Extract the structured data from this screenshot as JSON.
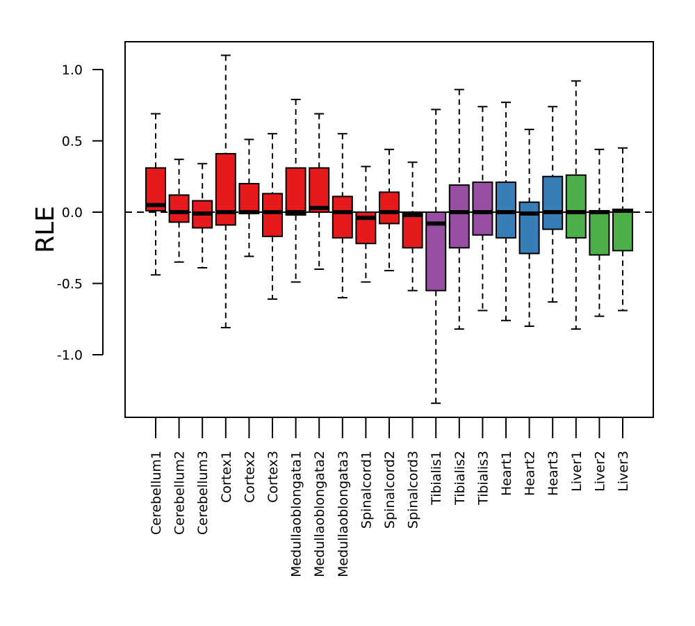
{
  "chart_data": {
    "type": "box",
    "ylabel": "RLE",
    "xlabel": "",
    "ylim": [
      -1.42,
      1.2
    ],
    "yticks": [
      1.0,
      0.5,
      0.0,
      -0.5,
      -1.0
    ],
    "ytick_labels": [
      "1.0",
      "0.5",
      "0.0",
      "-0.5",
      "-1.0"
    ],
    "reference_line": 0.0,
    "colors": {
      "red": "#e41a1c",
      "purple": "#984ea3",
      "blue": "#377eb8",
      "green": "#4daf4a"
    },
    "boxes": [
      {
        "label": "Cerebellum1",
        "color": "red",
        "min": -0.44,
        "q1": 0.01,
        "median": 0.05,
        "q3": 0.31,
        "max": 0.69
      },
      {
        "label": "Cerebellum2",
        "color": "red",
        "min": -0.35,
        "q1": -0.07,
        "median": 0.0,
        "q3": 0.12,
        "max": 0.37
      },
      {
        "label": "Cerebellum3",
        "color": "red",
        "min": -0.39,
        "q1": -0.11,
        "median": -0.01,
        "q3": 0.08,
        "max": 0.34
      },
      {
        "label": "Cortex1",
        "color": "red",
        "min": -0.81,
        "q1": -0.09,
        "median": 0.0,
        "q3": 0.41,
        "max": 1.1
      },
      {
        "label": "Cortex2",
        "color": "red",
        "min": -0.31,
        "q1": -0.01,
        "median": 0.0,
        "q3": 0.2,
        "max": 0.51
      },
      {
        "label": "Cortex3",
        "color": "red",
        "min": -0.61,
        "q1": -0.17,
        "median": 0.0,
        "q3": 0.13,
        "max": 0.55
      },
      {
        "label": "Medullaoblongata1",
        "color": "red",
        "min": -0.49,
        "q1": -0.02,
        "median": 0.0,
        "q3": 0.31,
        "max": 0.79
      },
      {
        "label": "Medullaoblongata2",
        "color": "red",
        "min": -0.4,
        "q1": 0.0,
        "median": 0.03,
        "q3": 0.31,
        "max": 0.69
      },
      {
        "label": "Medullaoblongata3",
        "color": "red",
        "min": -0.6,
        "q1": -0.18,
        "median": 0.0,
        "q3": 0.11,
        "max": 0.55
      },
      {
        "label": "Spinalcord1",
        "color": "red",
        "min": -0.49,
        "q1": -0.22,
        "median": -0.04,
        "q3": 0.0,
        "max": 0.32
      },
      {
        "label": "Spinalcord2",
        "color": "red",
        "min": -0.41,
        "q1": -0.08,
        "median": 0.0,
        "q3": 0.14,
        "max": 0.44
      },
      {
        "label": "Spinalcord3",
        "color": "red",
        "min": -0.55,
        "q1": -0.25,
        "median": -0.02,
        "q3": 0.0,
        "max": 0.35
      },
      {
        "label": "Tibialis1",
        "color": "purple",
        "min": -1.34,
        "q1": -0.55,
        "median": -0.08,
        "q3": 0.0,
        "max": 0.72
      },
      {
        "label": "Tibialis2",
        "color": "purple",
        "min": -0.82,
        "q1": -0.25,
        "median": 0.0,
        "q3": 0.19,
        "max": 0.86
      },
      {
        "label": "Tibialis3",
        "color": "purple",
        "min": -0.69,
        "q1": -0.16,
        "median": 0.0,
        "q3": 0.21,
        "max": 0.74
      },
      {
        "label": "Heart1",
        "color": "blue",
        "min": -0.76,
        "q1": -0.18,
        "median": 0.0,
        "q3": 0.21,
        "max": 0.77
      },
      {
        "label": "Heart2",
        "color": "blue",
        "min": -0.8,
        "q1": -0.29,
        "median": -0.01,
        "q3": 0.07,
        "max": 0.58
      },
      {
        "label": "Heart3",
        "color": "blue",
        "min": -0.63,
        "q1": -0.12,
        "median": 0.0,
        "q3": 0.25,
        "max": 0.74
      },
      {
        "label": "Liver1",
        "color": "green",
        "min": -0.82,
        "q1": -0.18,
        "median": 0.0,
        "q3": 0.26,
        "max": 0.92
      },
      {
        "label": "Liver2",
        "color": "green",
        "min": -0.73,
        "q1": -0.3,
        "median": 0.0,
        "q3": 0.01,
        "max": 0.44
      },
      {
        "label": "Liver3",
        "color": "green",
        "min": -0.69,
        "q1": -0.27,
        "median": 0.01,
        "q3": 0.02,
        "max": 0.45
      }
    ]
  }
}
